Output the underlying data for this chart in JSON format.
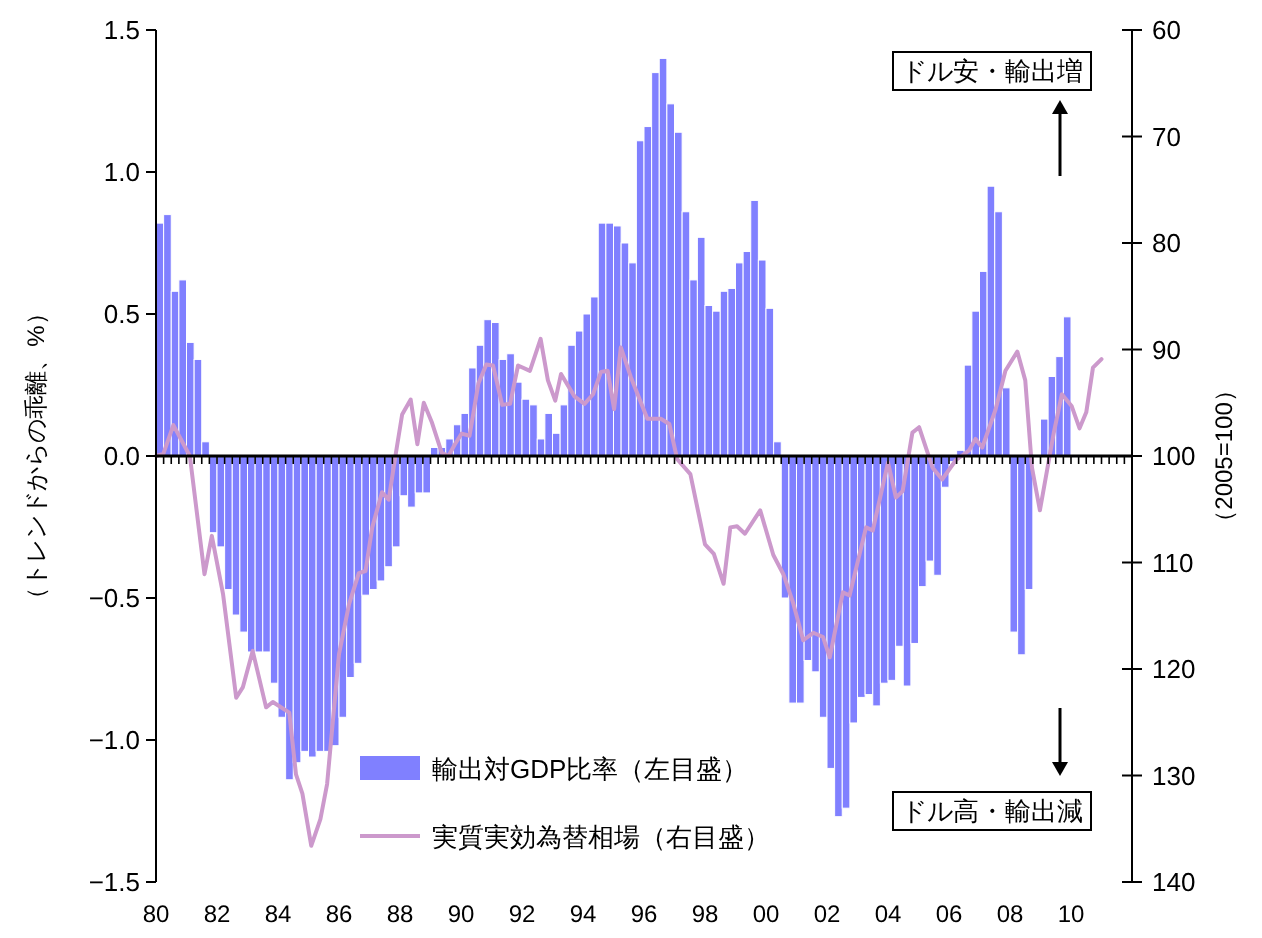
{
  "chart_data": {
    "type": "bar",
    "ylabel": "（トレンドからの乖離、%）",
    "y2label": "（2005=100）",
    "annotations": [
      "ドル安・輸出増",
      "ドル高・輸出減"
    ],
    "xlim": [
      1980,
      2012
    ],
    "xticks": [
      {
        "value": 1980,
        "label": "80"
      },
      {
        "value": 1982,
        "label": "82"
      },
      {
        "value": 1984,
        "label": "84"
      },
      {
        "value": 1986,
        "label": "86"
      },
      {
        "value": 1988,
        "label": "88"
      },
      {
        "value": 1990,
        "label": "90"
      },
      {
        "value": 1992,
        "label": "92"
      },
      {
        "value": 1994,
        "label": "94"
      },
      {
        "value": 1996,
        "label": "96"
      },
      {
        "value": 1998,
        "label": "98"
      },
      {
        "value": 2000,
        "label": "00"
      },
      {
        "value": 2002,
        "label": "02"
      },
      {
        "value": 2004,
        "label": "04"
      },
      {
        "value": 2006,
        "label": "06"
      },
      {
        "value": 2008,
        "label": "08"
      },
      {
        "value": 2010,
        "label": "10"
      }
    ],
    "ylim": [
      -1.5,
      1.5
    ],
    "yticks": [
      {
        "value": 1.5,
        "label": "1.5"
      },
      {
        "value": 1.0,
        "label": "1.0"
      },
      {
        "value": 0.5,
        "label": "0.5"
      },
      {
        "value": 0.0,
        "label": "0.0"
      },
      {
        "value": -0.5,
        "label": "−0.5"
      },
      {
        "value": -1.0,
        "label": "−1.0"
      },
      {
        "value": -1.5,
        "label": "−1.5"
      }
    ],
    "y2lim": [
      140,
      60
    ],
    "y2ticks": [
      60,
      70,
      80,
      90,
      100,
      110,
      120,
      130,
      140
    ],
    "legend": "bottom",
    "series": [
      {
        "name": "輸出対GDP比率（左目盛）",
        "color": "#8080ff",
        "x": [
          1980.125,
          1980.375,
          1980.625,
          1980.875,
          1981.125,
          1981.375,
          1981.625,
          1981.875,
          1982.125,
          1982.375,
          1982.625,
          1982.875,
          1983.125,
          1983.375,
          1983.625,
          1983.875,
          1984.125,
          1984.375,
          1984.625,
          1984.875,
          1985.125,
          1985.375,
          1985.625,
          1985.875,
          1986.125,
          1986.375,
          1986.625,
          1986.875,
          1987.125,
          1987.375,
          1987.625,
          1987.875,
          1988.125,
          1988.375,
          1988.625,
          1988.875,
          1989.125,
          1989.375,
          1989.625,
          1989.875,
          1990.125,
          1990.375,
          1990.625,
          1990.875,
          1991.125,
          1991.375,
          1991.625,
          1991.875,
          1992.125,
          1992.375,
          1992.625,
          1992.875,
          1993.125,
          1993.375,
          1993.625,
          1993.875,
          1994.125,
          1994.375,
          1994.625,
          1994.875,
          1995.125,
          1995.375,
          1995.625,
          1995.875,
          1996.125,
          1996.375,
          1996.625,
          1996.875,
          1997.125,
          1997.375,
          1997.625,
          1997.875,
          1998.125,
          1998.375,
          1998.625,
          1998.875,
          1999.125,
          1999.375,
          1999.625,
          1999.875,
          2000.125,
          2000.375,
          2000.625,
          2000.875,
          2001.125,
          2001.375,
          2001.625,
          2001.875,
          2002.125,
          2002.375,
          2002.625,
          2002.875,
          2003.125,
          2003.375,
          2003.625,
          2003.875,
          2004.125,
          2004.375,
          2004.625,
          2004.875,
          2005.125,
          2005.375,
          2005.625,
          2005.875,
          2006.125,
          2006.375,
          2006.625,
          2006.875,
          2007.125,
          2007.375,
          2007.625,
          2007.875,
          2008.125,
          2008.375,
          2008.625,
          2008.875,
          2009.125,
          2009.375,
          2009.625,
          2009.875
        ],
        "values": [
          0.82,
          0.85,
          0.58,
          0.62,
          0.4,
          0.34,
          0.05,
          -0.27,
          -0.32,
          -0.47,
          -0.56,
          -0.62,
          -0.69,
          -0.69,
          -0.69,
          -0.8,
          -0.92,
          -1.14,
          -1.08,
          -1.04,
          -1.06,
          -1.04,
          -1.04,
          -1.02,
          -0.92,
          -0.78,
          -0.73,
          -0.49,
          -0.47,
          -0.44,
          -0.39,
          -0.32,
          -0.14,
          -0.18,
          -0.13,
          -0.13,
          0.03,
          0.03,
          0.06,
          0.11,
          0.15,
          0.31,
          0.39,
          0.48,
          0.47,
          0.34,
          0.36,
          0.26,
          0.2,
          0.18,
          0.06,
          0.15,
          0.08,
          0.18,
          0.39,
          0.44,
          0.5,
          0.56,
          0.82,
          0.82,
          0.81,
          0.75,
          0.68,
          1.11,
          1.16,
          1.35,
          1.4,
          1.24,
          1.14,
          0.86,
          0.62,
          0.77,
          0.53,
          0.51,
          0.58,
          0.59,
          0.68,
          0.72,
          0.9,
          0.69,
          0.52,
          0.05,
          -0.5,
          -0.87,
          -0.87,
          -0.72,
          -0.76,
          -0.92,
          -1.1,
          -1.27,
          -1.24,
          -0.94,
          -0.85,
          -0.84,
          -0.88,
          -0.8,
          -0.79,
          -0.67,
          -0.81,
          -0.66,
          -0.46,
          -0.37,
          -0.42,
          -0.11,
          -0.02,
          0.02,
          0.32,
          0.51,
          0.65,
          0.95,
          0.86,
          0.24,
          -0.62,
          -0.7,
          -0.47,
          0.0,
          0.13,
          0.28,
          0.35,
          0.49
        ]
      },
      {
        "name": "実質実効為替相場（右目盛）",
        "type": "line",
        "axis": "y2",
        "color": "#cc99cc",
        "marker": "none",
        "line_style": "solid",
        "x": [
          1980.0,
          1980.24,
          1980.57,
          1981.11,
          1981.59,
          1981.83,
          1982.2,
          1982.63,
          1982.85,
          1983.17,
          1983.61,
          1983.83,
          1984.37,
          1984.59,
          1984.8,
          1985.09,
          1985.39,
          1985.61,
          1986.0,
          1986.33,
          1986.65,
          1986.87,
          1987.09,
          1987.41,
          1987.63,
          1987.85,
          1988.07,
          1988.35,
          1988.57,
          1988.78,
          1989.04,
          1989.37,
          1989.59,
          1989.8,
          1990.02,
          1990.28,
          1990.57,
          1990.83,
          1991.05,
          1991.35,
          1991.61,
          1991.87,
          1992.26,
          1992.61,
          1992.85,
          1993.09,
          1993.28,
          1993.72,
          1994.05,
          1994.33,
          1994.59,
          1994.81,
          1995.02,
          1995.24,
          1995.57,
          1996.11,
          1996.55,
          1996.83,
          1997.09,
          1997.52,
          1998.0,
          1998.29,
          1998.61,
          1998.83,
          1999.05,
          1999.31,
          1999.81,
          2000.24,
          2000.57,
          2000.89,
          2001.22,
          2001.55,
          2001.87,
          2002.09,
          2002.52,
          2002.74,
          2003.28,
          2003.5,
          2004.0,
          2004.26,
          2004.48,
          2004.8,
          2005.02,
          2005.46,
          2005.78,
          2006.22,
          2006.65,
          2006.87,
          2007.09,
          2007.52,
          2007.85,
          2008.24,
          2008.5,
          2008.72,
          2008.98,
          2009.43,
          2009.7,
          2010.02,
          2010.28,
          2010.5,
          2010.72,
          2011.0
        ],
        "values": [
          100.0,
          99.8,
          97.1,
          100.0,
          111.1,
          107.5,
          113.0,
          122.7,
          121.7,
          118.3,
          123.6,
          123.1,
          124.1,
          129.9,
          131.7,
          136.6,
          134.1,
          130.8,
          118.6,
          113.9,
          111.0,
          110.8,
          106.7,
          103.4,
          104.1,
          100.0,
          96.1,
          94.7,
          98.9,
          95.0,
          96.8,
          99.7,
          100.0,
          98.9,
          97.9,
          98.1,
          93.2,
          91.4,
          91.5,
          95.2,
          95.1,
          91.5,
          92.0,
          89.0,
          92.9,
          94.8,
          92.3,
          94.4,
          95.1,
          94.2,
          92.1,
          92.0,
          95.6,
          89.8,
          92.6,
          96.5,
          96.5,
          97.0,
          100.3,
          101.7,
          108.3,
          109.2,
          112.0,
          106.7,
          106.6,
          107.3,
          105.1,
          109.3,
          111.1,
          113.8,
          117.3,
          116.6,
          117.0,
          118.9,
          112.8,
          113.1,
          106.7,
          107.0,
          100.6,
          103.9,
          103.3,
          97.8,
          97.3,
          101.1,
          102.2,
          100.4,
          99.5,
          98.4,
          99.2,
          95.7,
          92.0,
          90.2,
          92.9,
          101.1,
          105.1,
          97.9,
          94.2,
          95.3,
          97.4,
          95.9,
          91.7,
          90.9
        ]
      }
    ]
  }
}
